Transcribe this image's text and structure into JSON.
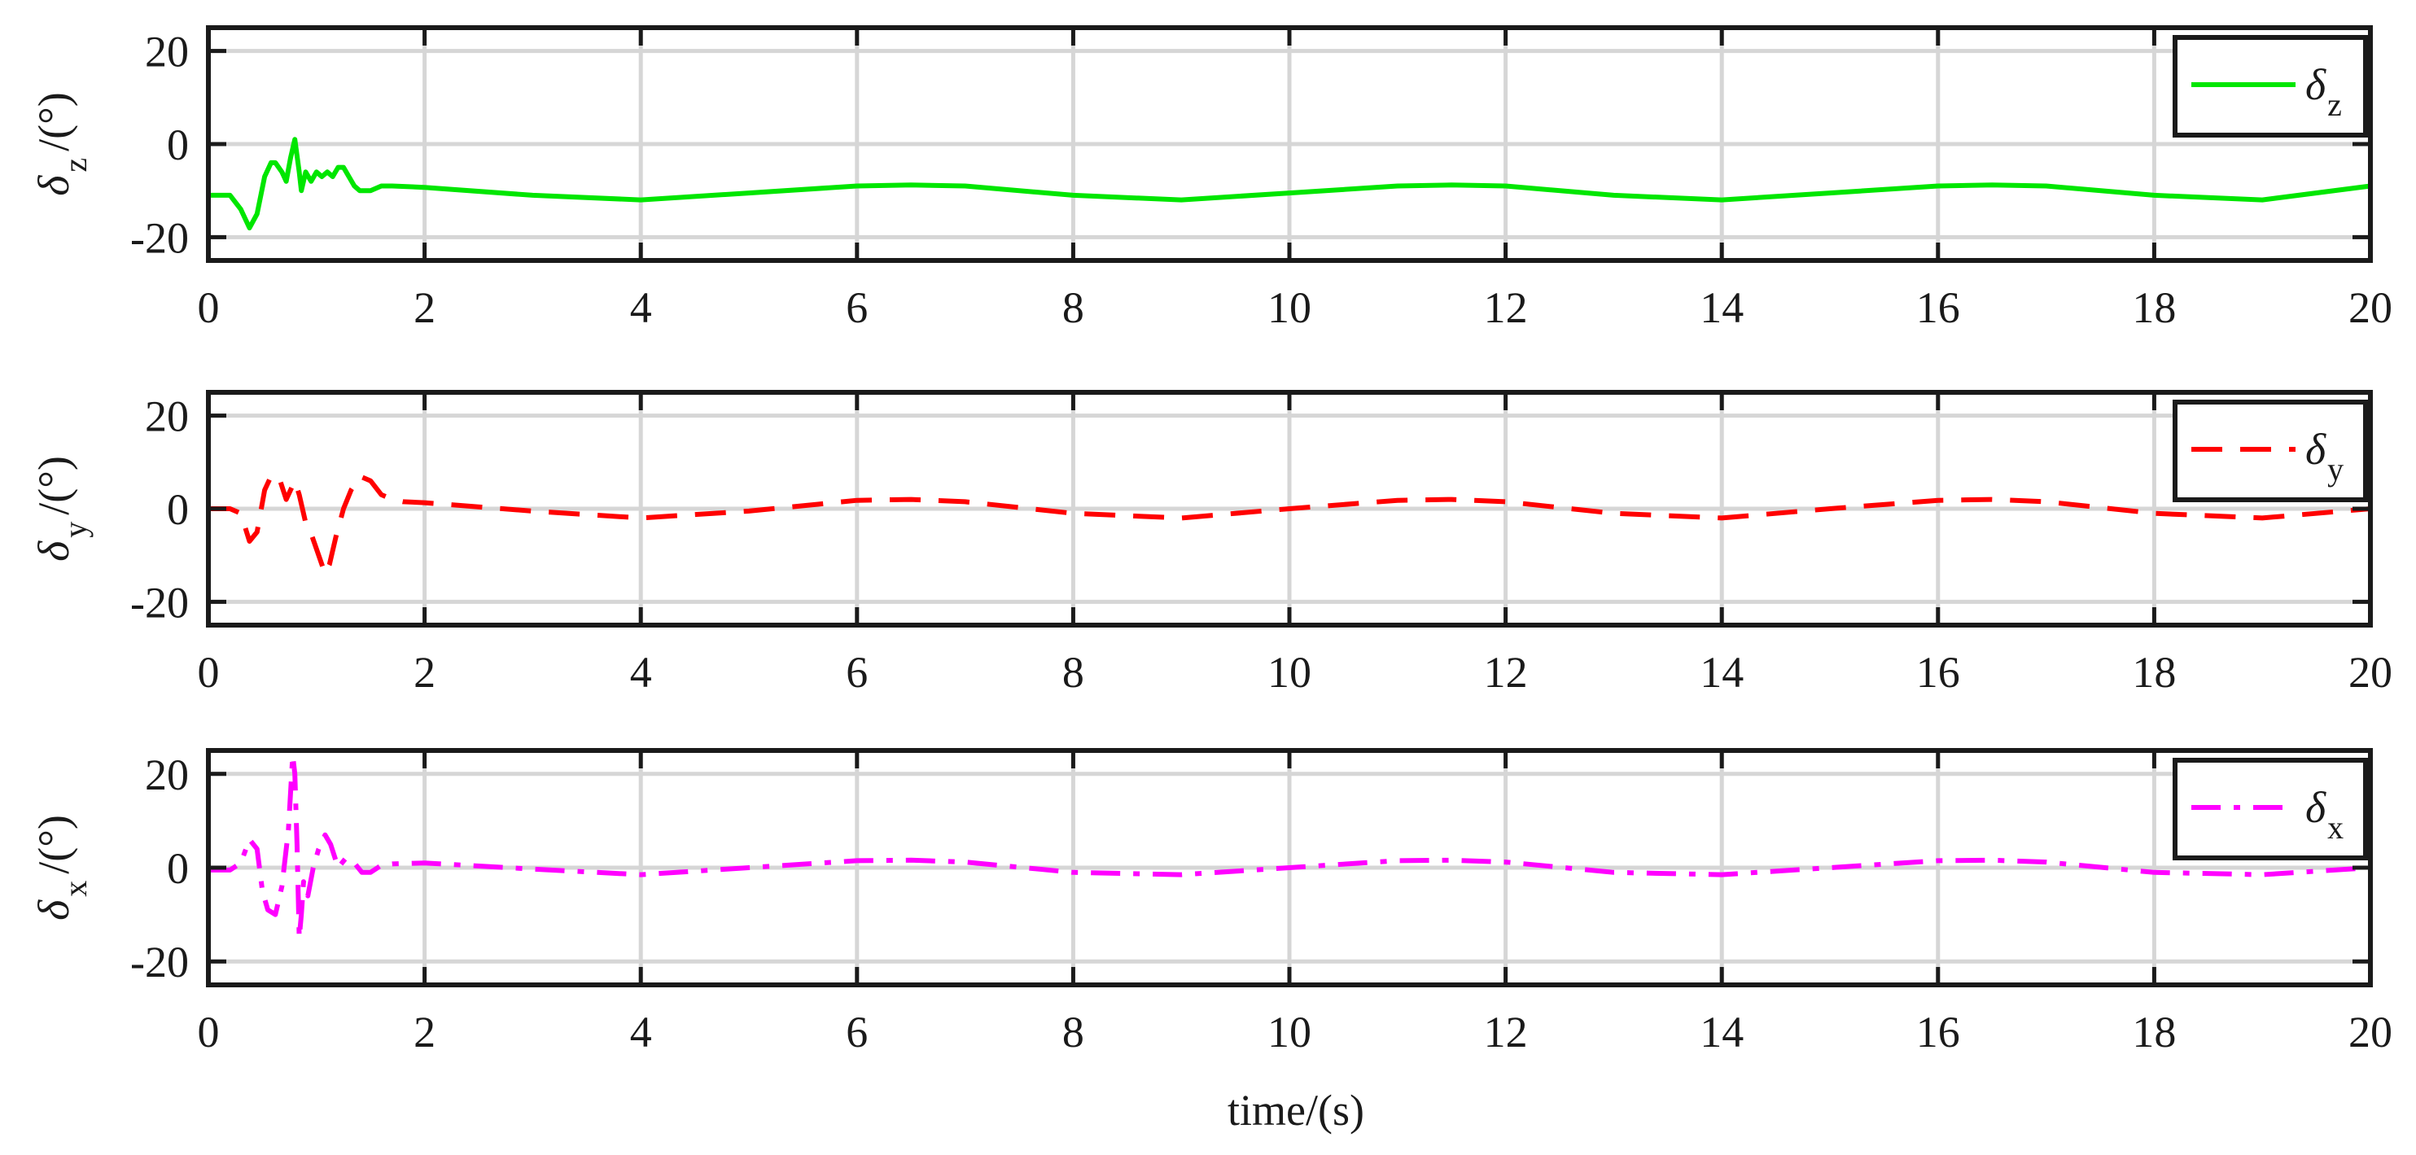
{
  "chart_data": [
    {
      "type": "line",
      "panel": "top",
      "ylabel_symbol": "δ",
      "ylabel_sub": "z",
      "ylabel_unit": "/(°)",
      "legend_symbol": "δ",
      "legend_sub": "z",
      "legend_position": "top-right",
      "series_color": "#00e600",
      "line_style": "solid",
      "xlim": [
        0,
        20
      ],
      "ylim": [
        -25,
        25
      ],
      "xticks": [
        0,
        2,
        4,
        6,
        8,
        10,
        12,
        14,
        16,
        18,
        20
      ],
      "yticks": [
        -20,
        0,
        20
      ],
      "grid": true,
      "x": [
        0,
        0.2,
        0.3,
        0.38,
        0.45,
        0.52,
        0.58,
        0.62,
        0.68,
        0.72,
        0.76,
        0.8,
        0.84,
        0.86,
        0.9,
        0.95,
        1.0,
        1.05,
        1.1,
        1.15,
        1.2,
        1.25,
        1.3,
        1.35,
        1.4,
        1.5,
        1.6,
        1.7,
        2,
        3,
        4,
        5,
        6,
        6.5,
        7,
        8,
        9,
        10,
        11,
        11.5,
        12,
        13,
        14,
        15,
        16,
        16.5,
        17,
        18,
        19,
        20
      ],
      "y": [
        -11,
        -11,
        -14,
        -18,
        -15,
        -7,
        -4,
        -4,
        -6,
        -8,
        -3,
        1,
        -6,
        -10,
        -6,
        -8,
        -6,
        -7,
        -6,
        -7,
        -5,
        -5,
        -7,
        -9,
        -10,
        -10,
        -9,
        -9,
        -9.3,
        -11,
        -12,
        -10.5,
        -9,
        -8.8,
        -9,
        -11,
        -12,
        -10.5,
        -9,
        -8.8,
        -9,
        -11,
        -12,
        -10.5,
        -9,
        -8.8,
        -9,
        -11,
        -12,
        -9
      ]
    },
    {
      "type": "line",
      "panel": "middle",
      "ylabel_symbol": "δ",
      "ylabel_sub": "y",
      "ylabel_unit": "/(°)",
      "legend_symbol": "δ",
      "legend_sub": "y",
      "legend_position": "top-right",
      "series_color": "#ff0000",
      "line_style": "dashed",
      "xlim": [
        0,
        20
      ],
      "ylim": [
        -25,
        25
      ],
      "xticks": [
        0,
        2,
        4,
        6,
        8,
        10,
        12,
        14,
        16,
        18,
        20
      ],
      "yticks": [
        -20,
        0,
        20
      ],
      "grid": true,
      "x": [
        0,
        0.2,
        0.3,
        0.38,
        0.45,
        0.52,
        0.58,
        0.65,
        0.72,
        0.8,
        0.84,
        0.9,
        0.96,
        1.02,
        1.08,
        1.12,
        1.18,
        1.25,
        1.32,
        1.4,
        1.5,
        1.6,
        1.7,
        1.8,
        2,
        3,
        4,
        5,
        6,
        6.5,
        7,
        8,
        9,
        10,
        11,
        11.5,
        12,
        13,
        14,
        15,
        16,
        16.5,
        17,
        18,
        19,
        20
      ],
      "y": [
        0,
        0,
        -1,
        -7,
        -5,
        4,
        7,
        7,
        2,
        6,
        3,
        -3,
        -6,
        -10,
        -14,
        -12,
        -6,
        0,
        4,
        7,
        6,
        3,
        2,
        1.5,
        1.3,
        -0.5,
        -2,
        -0.5,
        1.8,
        2,
        1.5,
        -1,
        -2,
        0,
        1.8,
        2,
        1.5,
        -1,
        -2,
        0,
        1.8,
        2,
        1.5,
        -1,
        -2,
        0
      ]
    },
    {
      "type": "line",
      "panel": "bottom",
      "ylabel_symbol": "δ",
      "ylabel_sub": "x",
      "ylabel_unit": "/(°)",
      "legend_symbol": "δ",
      "legend_sub": "x",
      "legend_position": "top-right",
      "series_color": "#ff00ff",
      "line_style": "dashdot",
      "xlim": [
        0,
        20
      ],
      "ylim": [
        -25,
        25
      ],
      "xticks": [
        0,
        2,
        4,
        6,
        8,
        10,
        12,
        14,
        16,
        18,
        20
      ],
      "yticks": [
        -20,
        0,
        20
      ],
      "grid": true,
      "x": [
        0,
        0.2,
        0.3,
        0.38,
        0.45,
        0.5,
        0.55,
        0.62,
        0.68,
        0.74,
        0.78,
        0.8,
        0.82,
        0.84,
        0.86,
        0.88,
        0.92,
        0.97,
        1.02,
        1.08,
        1.13,
        1.2,
        1.27,
        1.35,
        1.42,
        1.5,
        1.6,
        1.7,
        2,
        3,
        4,
        5,
        6,
        6.5,
        7,
        8,
        9,
        10,
        11,
        11.5,
        12,
        13,
        14,
        15,
        16,
        16.5,
        17,
        18,
        19,
        20
      ],
      "y": [
        -0.5,
        -0.5,
        1,
        6,
        4,
        -5,
        -9,
        -10,
        -4,
        8,
        24,
        20,
        5,
        -15,
        -10,
        -3,
        -6,
        0,
        4,
        7,
        5,
        0,
        2,
        1,
        -1,
        -1,
        0.5,
        0.8,
        1,
        -0.3,
        -1.5,
        0,
        1.5,
        1.6,
        1.2,
        -1,
        -1.5,
        0,
        1.5,
        1.6,
        1.2,
        -1,
        -1.5,
        0,
        1.5,
        1.6,
        1.2,
        -1,
        -1.5,
        0
      ]
    }
  ],
  "xlabel": "time/(s)"
}
